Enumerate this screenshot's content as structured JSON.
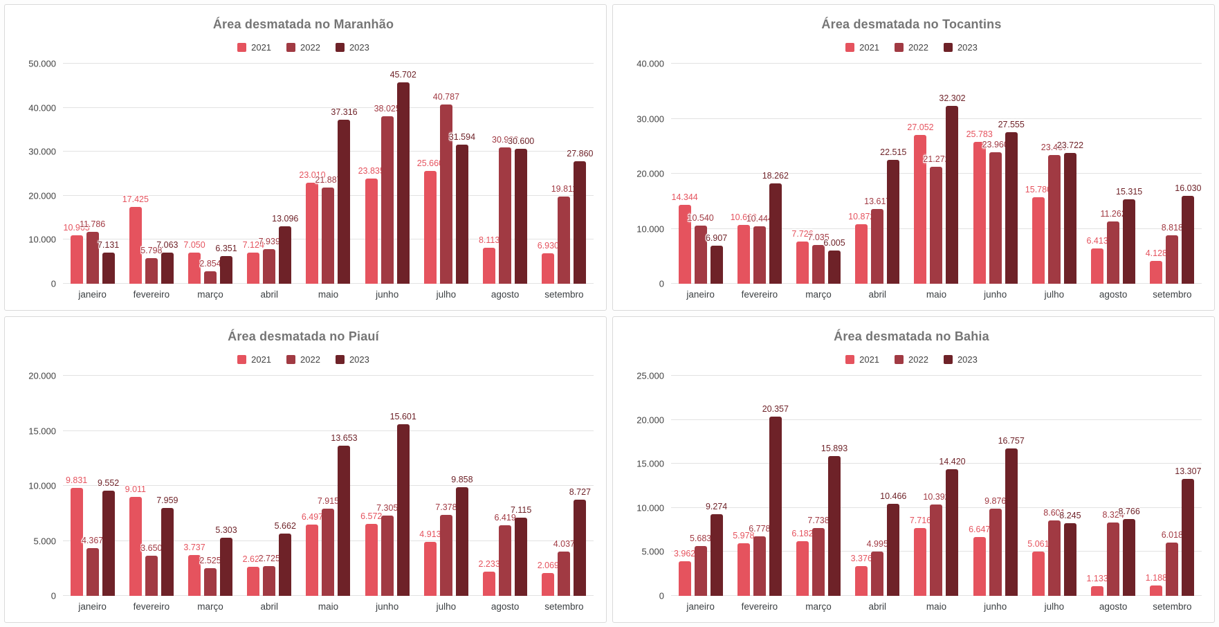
{
  "page": {
    "background": "#fdfdfd",
    "card_border": "#d9d9d9"
  },
  "series_colors": {
    "2021": "#e5535e",
    "2022": "#a13a43",
    "2023": "#6e2228"
  },
  "chart_data": [
    {
      "type": "bar",
      "title": "Área desmatada no Maranhão",
      "legend_position": "top",
      "grid": true,
      "categories": [
        "janeiro",
        "fevereiro",
        "março",
        "abril",
        "maio",
        "junho",
        "julho",
        "agosto",
        "setembro"
      ],
      "ylim": [
        0,
        50000
      ],
      "yticks": [
        0,
        10000,
        20000,
        30000,
        40000,
        50000
      ],
      "series": [
        {
          "name": "2021",
          "color": "#e5535e",
          "values": [
            10963,
            17425,
            7050,
            7124,
            23010,
            23835,
            25660,
            8113,
            6930
          ]
        },
        {
          "name": "2022",
          "color": "#a13a43",
          "values": [
            11786,
            5798,
            2854,
            7939,
            21887,
            38025,
            40787,
            30908,
            19811
          ]
        },
        {
          "name": "2023",
          "color": "#6e2228",
          "values": [
            7131,
            7063,
            6351,
            13096,
            37316,
            45702,
            31594,
            30600,
            27860
          ]
        }
      ]
    },
    {
      "type": "bar",
      "title": "Área desmatada no Tocantins",
      "legend_position": "top",
      "grid": true,
      "categories": [
        "janeiro",
        "fevereiro",
        "março",
        "abril",
        "maio",
        "junho",
        "julho",
        "agosto",
        "setembro"
      ],
      "ylim": [
        0,
        40000
      ],
      "yticks": [
        0,
        10000,
        20000,
        30000,
        40000
      ],
      "series": [
        {
          "name": "2021",
          "color": "#e5535e",
          "values": [
            14344,
            10663,
            7726,
            10872,
            27052,
            25783,
            15780,
            6413,
            4128
          ]
        },
        {
          "name": "2022",
          "color": "#a13a43",
          "values": [
            10540,
            10444,
            7035,
            13617,
            21272,
            23960,
            23437,
            11262,
            8818
          ]
        },
        {
          "name": "2023",
          "color": "#6e2228",
          "values": [
            6907,
            18262,
            6005,
            22515,
            32302,
            27555,
            23722,
            15315,
            16030
          ]
        }
      ]
    },
    {
      "type": "bar",
      "title": "Área desmatada no Piauí",
      "legend_position": "top",
      "grid": true,
      "categories": [
        "janeiro",
        "fevereiro",
        "março",
        "abril",
        "maio",
        "junho",
        "julho",
        "agosto",
        "setembro"
      ],
      "ylim": [
        0,
        20000
      ],
      "yticks": [
        0,
        5000,
        10000,
        15000,
        20000
      ],
      "series": [
        {
          "name": "2021",
          "color": "#e5535e",
          "values": [
            9831,
            9011,
            3737,
            2627,
            6497,
            6572,
            4913,
            2233,
            2069
          ]
        },
        {
          "name": "2022",
          "color": "#a13a43",
          "values": [
            4367,
            3650,
            2525,
            2725,
            7915,
            7305,
            7378,
            6419,
            4037
          ]
        },
        {
          "name": "2023",
          "color": "#6e2228",
          "values": [
            9552,
            7959,
            5303,
            5662,
            13653,
            15601,
            9858,
            7115,
            8727
          ]
        }
      ]
    },
    {
      "type": "bar",
      "title": "Área desmatada no Bahia",
      "legend_position": "top",
      "grid": true,
      "categories": [
        "janeiro",
        "fevereiro",
        "março",
        "abril",
        "maio",
        "junho",
        "julho",
        "agosto",
        "setembro"
      ],
      "ylim": [
        0,
        25000
      ],
      "yticks": [
        0,
        5000,
        10000,
        15000,
        20000,
        25000
      ],
      "series": [
        {
          "name": "2021",
          "color": "#e5535e",
          "values": [
            3962,
            5978,
            6182,
            3376,
            7716,
            6647,
            5061,
            1133,
            1188
          ]
        },
        {
          "name": "2022",
          "color": "#a13a43",
          "values": [
            5683,
            6778,
            7738,
            4995,
            10392,
            9876,
            8601,
            8324,
            6018
          ]
        },
        {
          "name": "2023",
          "color": "#6e2228",
          "values": [
            9274,
            20357,
            15893,
            10466,
            14420,
            16757,
            8245,
            8766,
            13307
          ]
        }
      ]
    }
  ]
}
